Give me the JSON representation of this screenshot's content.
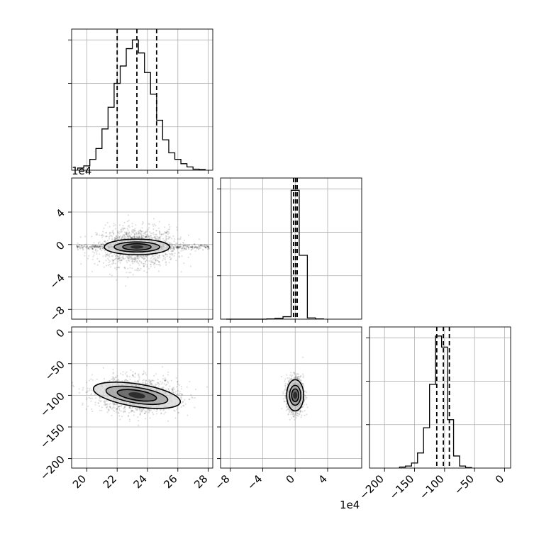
{
  "chart_data": [
    {
      "type": "histogram",
      "panel": "x-marginal",
      "xlim": [
        19,
        28.3
      ],
      "bin_edges": [
        19.4,
        19.8,
        20.2,
        20.6,
        21.0,
        21.4,
        21.8,
        22.2,
        22.6,
        23.0,
        23.4,
        23.8,
        24.2,
        24.6,
        25.0,
        25.4,
        25.8,
        26.2,
        26.6,
        27.0,
        27.4,
        27.8
      ],
      "counts": [
        1,
        2,
        5,
        10,
        19,
        29,
        40,
        48,
        56,
        60,
        54,
        45,
        35,
        23,
        14,
        8,
        5,
        3,
        1.5,
        0.5,
        0.3
      ],
      "ylim": [
        0,
        65
      ],
      "quantiles": [
        22.0,
        23.3,
        24.6
      ],
      "x_ticks": [
        "20",
        "22",
        "24",
        "26",
        "28"
      ]
    },
    {
      "type": "histogram",
      "panel": "y-marginal",
      "multiplier": "1e4",
      "xlim": [
        -9.2,
        8.2
      ],
      "bin_edges": [
        -8.5,
        -7.5,
        -6.5,
        -5.5,
        -4.5,
        -3.5,
        -2.5,
        -1.5,
        -0.5,
        0.5,
        1.5,
        2.5,
        3.5
      ],
      "counts": [
        0,
        0,
        0,
        0,
        0,
        0.2,
        0.6,
        2,
        105,
        52,
        1,
        0.2
      ],
      "ylim": [
        0,
        115
      ],
      "quantiles": [
        -0.2,
        0.05,
        0.25
      ],
      "x_ticks": [
        "−8",
        "−4",
        "0",
        "4"
      ]
    },
    {
      "type": "histogram",
      "panel": "z-marginal",
      "xlim": [
        -225,
        10
      ],
      "bin_edges": [
        -175,
        -165,
        -155,
        -145,
        -135,
        -125,
        -115,
        -105,
        -95,
        -85,
        -75,
        -65,
        -55
      ],
      "counts": [
        1,
        2,
        5,
        15,
        40,
        83,
        131,
        120,
        48,
        12,
        2,
        0.5
      ],
      "ylim": [
        0,
        140
      ],
      "quantiles": [
        -113,
        -102,
        -92
      ],
      "x_ticks": [
        "−200",
        "−150",
        "−100",
        "−50",
        "0"
      ]
    },
    {
      "type": "scatter",
      "panel": "x-y joint",
      "xlim": [
        19,
        28.3
      ],
      "ylim": [
        -9.2,
        8.2
      ],
      "y_multiplier": "1e4",
      "y_ticks": [
        "4",
        "0",
        "−4",
        "−8"
      ],
      "center": [
        23.3,
        -0.3
      ],
      "spread": [
        1.3,
        1.2
      ],
      "contour_levels": [
        "0.5σ",
        "1σ",
        "1.5σ"
      ]
    },
    {
      "type": "scatter",
      "panel": "x-z joint",
      "xlim": [
        19,
        28.3
      ],
      "ylim": [
        -215,
        8
      ],
      "y_ticks": [
        "0",
        "−50",
        "−100",
        "−150",
        "−200"
      ],
      "x_ticks": [
        "20",
        "22",
        "24",
        "26",
        "28"
      ],
      "center": [
        23.3,
        -100
      ],
      "spread": [
        1.4,
        14
      ]
    },
    {
      "type": "scatter",
      "panel": "y-z joint",
      "xlim": [
        -9.2,
        8.2
      ],
      "ylim": [
        -215,
        8
      ],
      "x_multiplier": "1e4",
      "x_ticks": [
        "−8",
        "−4",
        "0",
        "4"
      ],
      "center": [
        0.0,
        -100
      ],
      "spread": [
        0.5,
        14
      ]
    }
  ],
  "labels": {
    "mult_top": "1e4",
    "mult_bottom": "1e4"
  }
}
